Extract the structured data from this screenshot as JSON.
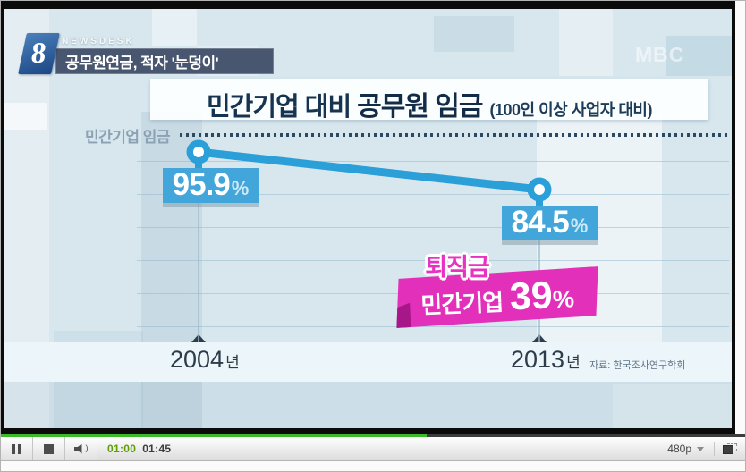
{
  "broadcast": {
    "badge": "8",
    "program": "NEWSDESK",
    "headline": "공무원연금, 적자 '눈덩이'",
    "watermark": "MBC"
  },
  "chart_data": {
    "type": "line",
    "title": {
      "prefix": "민간기업 대비",
      "emphasis": "공무원 임금",
      "note": "(100인 이상 사업자 대비)"
    },
    "reference_line_label": "민간기업 임금",
    "reference_line_value": 100,
    "categories": [
      "2004년",
      "2013년"
    ],
    "values": [
      95.9,
      84.5
    ],
    "unit": "%",
    "ylim": [
      0,
      100
    ],
    "points": [
      {
        "year": "2004",
        "year_suffix": "년",
        "value": "95.9",
        "unit": "%"
      },
      {
        "year": "2013",
        "year_suffix": "년",
        "value": "84.5",
        "unit": "%"
      }
    ],
    "callout": {
      "line1": "퇴직금",
      "label": "민간기업",
      "value": "39",
      "unit": "%"
    },
    "source": "자료: 한국조사연구학회",
    "colors": {
      "line": "#2b9fd8",
      "value_box": "#43a6da",
      "callout_pink": "#e230ba",
      "background": "#d8e7ee"
    },
    "legend_position": "none",
    "grid": true
  },
  "player": {
    "time_current": "01:00",
    "time_total": "01:45",
    "progress_percent": 57.2,
    "quality": "480p",
    "volume_wave": ")"
  }
}
